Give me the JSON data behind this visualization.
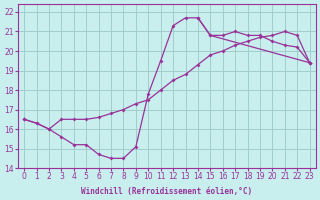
{
  "xlabel": "Windchill (Refroidissement éolien,°C)",
  "xlim": [
    -0.5,
    23.5
  ],
  "ylim": [
    14,
    22.4
  ],
  "xticks": [
    0,
    1,
    2,
    3,
    4,
    5,
    6,
    7,
    8,
    9,
    10,
    11,
    12,
    13,
    14,
    15,
    16,
    17,
    18,
    19,
    20,
    21,
    22,
    23
  ],
  "yticks": [
    14,
    15,
    16,
    17,
    18,
    19,
    20,
    21,
    22
  ],
  "bg_color": "#c8eeee",
  "grid_color": "#a0cccc",
  "line_color": "#993399",
  "line1_x": [
    0,
    1,
    2,
    3,
    4,
    5,
    6,
    7,
    8,
    9,
    10,
    11,
    12,
    13,
    14,
    15,
    23
  ],
  "line1_y": [
    16.5,
    16.3,
    16.0,
    15.6,
    15.2,
    15.2,
    14.7,
    14.5,
    14.5,
    15.1,
    17.8,
    19.5,
    21.3,
    21.7,
    21.7,
    20.8,
    19.4
  ],
  "line2_x": [
    0,
    1,
    2,
    3,
    4,
    5,
    6,
    7,
    8,
    9,
    10,
    11,
    12,
    13,
    14,
    15,
    16,
    17,
    18,
    19,
    20,
    21,
    22,
    23
  ],
  "line2_y": [
    16.5,
    16.3,
    16.0,
    16.5,
    16.5,
    16.5,
    16.6,
    16.8,
    17.0,
    17.3,
    17.5,
    18.0,
    18.5,
    18.8,
    19.3,
    19.8,
    20.0,
    20.3,
    20.5,
    20.7,
    20.8,
    21.0,
    20.8,
    19.4
  ],
  "line3_x": [
    14,
    15,
    16,
    17,
    18,
    19,
    20,
    21,
    22,
    23
  ],
  "line3_y": [
    21.7,
    20.8,
    20.8,
    21.0,
    20.8,
    20.8,
    20.5,
    20.3,
    20.2,
    19.4
  ]
}
